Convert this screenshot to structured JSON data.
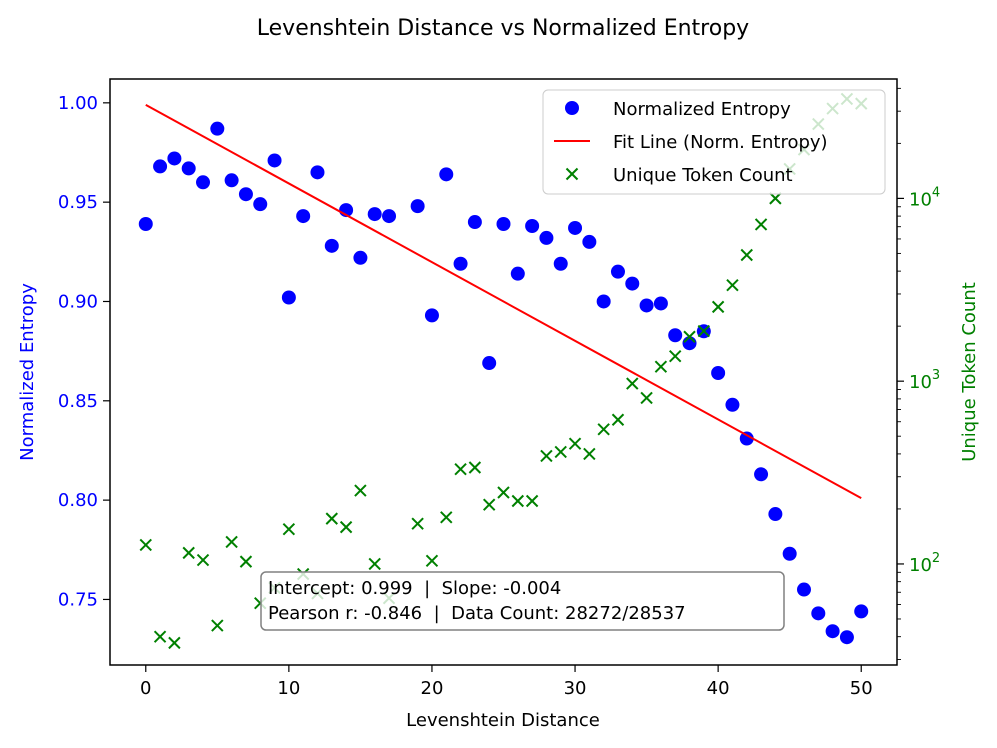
{
  "chart_data": {
    "type": "scatter",
    "title": "Levenshtein Distance vs Normalized Entropy",
    "xlabel": "Levenshtein Distance",
    "ylabel": "Normalized Entropy",
    "ylabel_right": "Unique Token Count",
    "xlim": [
      -2.5,
      52.5
    ],
    "ylim": [
      0.717,
      1.012
    ],
    "ylim_right_log": [
      28,
      45000
    ],
    "x_ticks": [
      0,
      10,
      20,
      30,
      40,
      50
    ],
    "y_ticks": [
      0.75,
      0.8,
      0.85,
      0.9,
      0.95,
      1.0
    ],
    "y_tick_labels": [
      "0.75",
      "0.80",
      "0.85",
      "0.90",
      "0.95",
      "1.00"
    ],
    "y_right_major_ticks": [
      100,
      1000,
      10000
    ],
    "y_right_major_labels": [
      {
        "base": "10",
        "exp": "2"
      },
      {
        "base": "10",
        "exp": "3"
      },
      {
        "base": "10",
        "exp": "4"
      }
    ],
    "grid": false,
    "legend_position": "top-right",
    "colors": {
      "entropy": "#0000ff",
      "fit": "#ff0000",
      "tokens": "#008000",
      "axis": "#000000"
    },
    "legend": [
      {
        "label": "Normalized Entropy",
        "marker": "circle",
        "color": "#0000ff"
      },
      {
        "label": "Fit Line (Norm. Entropy)",
        "marker": "line",
        "color": "#ff0000"
      },
      {
        "label": "Unique Token Count",
        "marker": "x",
        "color": "#008000"
      }
    ],
    "series": [
      {
        "name": "Normalized Entropy",
        "axis": "left",
        "x": [
          0,
          1,
          2,
          3,
          4,
          5,
          6,
          7,
          8,
          9,
          10,
          11,
          12,
          13,
          14,
          15,
          16,
          17,
          19,
          20,
          21,
          22,
          23,
          24,
          25,
          26,
          27,
          28,
          29,
          30,
          31,
          32,
          33,
          34,
          35,
          36,
          37,
          38,
          39,
          40,
          41,
          42,
          43,
          44,
          45,
          46,
          47,
          48,
          49,
          50
        ],
        "y": [
          0.939,
          0.968,
          0.972,
          0.967,
          0.96,
          0.987,
          0.961,
          0.954,
          0.949,
          0.971,
          0.902,
          0.943,
          0.965,
          0.928,
          0.946,
          0.922,
          0.944,
          0.943,
          0.948,
          0.893,
          0.964,
          0.919,
          0.94,
          0.869,
          0.939,
          0.914,
          0.938,
          0.932,
          0.919,
          0.937,
          0.93,
          0.9,
          0.915,
          0.909,
          0.898,
          0.899,
          0.883,
          0.879,
          0.885,
          0.864,
          0.848,
          0.831,
          0.813,
          0.793,
          0.773,
          0.755,
          0.743,
          0.734,
          0.731,
          0.744
        ]
      },
      {
        "name": "Fit Line (Norm. Entropy)",
        "axis": "left",
        "x": [
          0,
          50
        ],
        "y": [
          0.999,
          0.801
        ]
      },
      {
        "name": "Unique Token Count",
        "axis": "right",
        "x": [
          0,
          1,
          2,
          3,
          4,
          5,
          6,
          7,
          8,
          9,
          10,
          11,
          12,
          13,
          14,
          16,
          15,
          17,
          19,
          20,
          21,
          22,
          23,
          24,
          25,
          26,
          27,
          28,
          29,
          30,
          31,
          32,
          33,
          34,
          35,
          36,
          37,
          38,
          39,
          40,
          41,
          42,
          43,
          44,
          45,
          46,
          47,
          48,
          49,
          50
        ],
        "y": [
          127,
          40,
          37,
          115,
          105,
          46,
          132,
          103,
          61,
          74,
          155,
          88,
          69,
          177,
          159,
          100,
          252,
          65,
          166,
          104,
          180,
          330,
          337,
          211,
          246,
          221,
          221,
          390,
          410,
          455,
          400,
          545,
          615,
          970,
          810,
          1200,
          1370,
          1750,
          1880,
          2550,
          3350,
          4900,
          7200,
          10000,
          14500,
          18500,
          25500,
          31000,
          35000,
          33000
        ]
      }
    ],
    "annotation": {
      "line1": "Intercept: 0.999  |  Slope: -0.004",
      "line2": "Pearson r: -0.846  |  Data Count: 28272/28537"
    }
  }
}
